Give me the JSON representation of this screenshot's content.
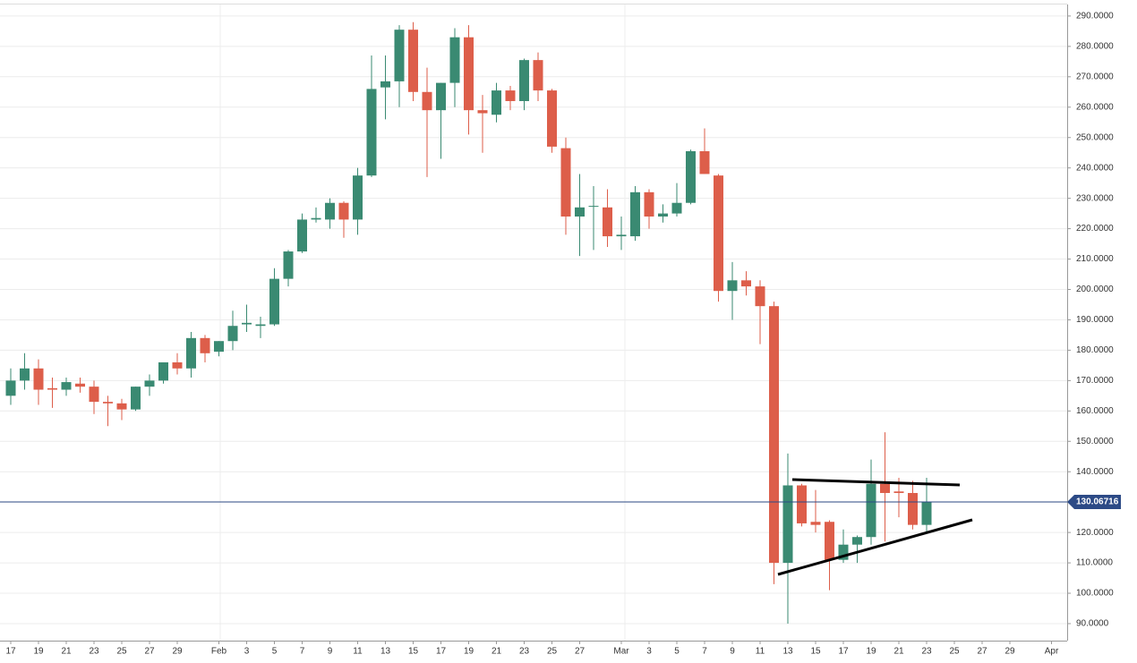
{
  "chart_data": {
    "type": "candlestick",
    "categories": [
      "17",
      null,
      "19",
      null,
      "21",
      null,
      "23",
      null,
      "25",
      null,
      "27",
      null,
      "29",
      null,
      null,
      "Feb",
      null,
      "3",
      null,
      "5",
      null,
      "7",
      null,
      "9",
      null,
      "11",
      null,
      "13",
      null,
      "15",
      null,
      "17",
      null,
      "19",
      null,
      "21",
      null,
      "23",
      null,
      "25",
      null,
      "27",
      null,
      null,
      "Mar",
      null,
      "3",
      null,
      "5",
      null,
      "7",
      null,
      "9",
      null,
      "11",
      null,
      "13",
      null,
      "15",
      null,
      "17",
      null,
      "19",
      null,
      "21",
      null,
      "23",
      null,
      "25",
      null,
      "27",
      null,
      "29",
      null,
      null,
      "Apr"
    ],
    "open": [
      165,
      170,
      174,
      167.5,
      167,
      169,
      168,
      163,
      162.5,
      160.5,
      168,
      170,
      176,
      174,
      184,
      179.5,
      183,
      188.5,
      188,
      188.5,
      203.5,
      212.5,
      223,
      223,
      228.5,
      223,
      237.5,
      266.5,
      268.5,
      285.5,
      265,
      259,
      268,
      283,
      259,
      257.5,
      265.5,
      262,
      275.5,
      265.5,
      246.5,
      224,
      227.5,
      227,
      217.5,
      217.5,
      232,
      224,
      225,
      228.5,
      245.5,
      237.5,
      199.5,
      203,
      201,
      194.5,
      110,
      135.5,
      123.5,
      123.5,
      111,
      116,
      118.5,
      136,
      133.5,
      133,
      122.5,
      null,
      null,
      null,
      null,
      null,
      null,
      null,
      null,
      null
    ],
    "high": [
      174,
      179,
      177,
      171,
      171,
      171,
      170,
      165,
      164,
      168,
      172,
      176,
      179,
      186,
      185,
      183,
      193,
      195,
      191,
      207,
      213,
      225,
      227,
      230,
      229,
      240,
      277,
      277,
      287,
      288,
      273,
      268,
      286,
      287,
      264,
      268,
      267,
      276,
      278,
      266,
      250,
      238,
      234,
      233,
      224,
      234,
      233,
      228,
      235,
      246,
      253,
      238,
      209,
      206,
      203,
      196,
      146,
      136,
      134,
      124,
      121,
      119,
      144,
      153,
      138,
      137,
      138,
      null,
      null,
      null,
      null,
      null,
      null,
      null,
      null,
      null
    ],
    "low": [
      162,
      167,
      162,
      161,
      165,
      166,
      159,
      155,
      157,
      160,
      165,
      169,
      172,
      171,
      176,
      178,
      180,
      186,
      184,
      188,
      201,
      212,
      222,
      220,
      217,
      218,
      237,
      256,
      260,
      262,
      237,
      243,
      260,
      251,
      245,
      255,
      259,
      259,
      262,
      245,
      218,
      211,
      213,
      214,
      213,
      216,
      220,
      222,
      224,
      228,
      238,
      196,
      190,
      198,
      182,
      103,
      90,
      122,
      120,
      101,
      110,
      110,
      116,
      117,
      125,
      121,
      120,
      null,
      null,
      null,
      null,
      null,
      null,
      null,
      null,
      null
    ],
    "close": [
      170,
      174,
      167,
      167,
      169.5,
      168,
      163,
      162.5,
      160.5,
      168,
      170,
      176,
      174,
      184,
      179,
      183,
      188,
      189,
      188.5,
      203.5,
      212.5,
      223,
      223.5,
      228.5,
      223,
      237.5,
      266,
      268.5,
      285.5,
      265,
      259,
      268,
      283,
      259,
      258,
      265.5,
      262,
      275.5,
      265.5,
      247,
      224,
      227,
      227.5,
      217.5,
      218,
      232,
      224,
      225,
      228.5,
      245.5,
      238,
      199.5,
      203,
      201,
      194.5,
      110,
      135.5,
      123,
      122.5,
      111,
      116,
      118.5,
      136,
      133,
      133,
      122.5,
      130,
      null,
      null,
      null,
      null,
      null,
      null,
      null,
      null,
      null
    ],
    "up_color": "#3a8a72",
    "down_color": "#dd5e4a",
    "ylim": [
      84.4,
      293.8
    ],
    "yticks": [
      {
        "value": 90,
        "label": "90.0000"
      },
      {
        "value": 100,
        "label": "100.0000"
      },
      {
        "value": 110,
        "label": "110.0000"
      },
      {
        "value": 120,
        "label": "120.0000"
      },
      {
        "value": 130,
        "label": "130.0000"
      },
      {
        "value": 140,
        "label": "140.0000"
      },
      {
        "value": 150,
        "label": "150.0000"
      },
      {
        "value": 160,
        "label": "160.0000"
      },
      {
        "value": 170,
        "label": "170.0000"
      },
      {
        "value": 180,
        "label": "180.0000"
      },
      {
        "value": 190,
        "label": "190.0000"
      },
      {
        "value": 200,
        "label": "200.0000"
      },
      {
        "value": 210,
        "label": "210.0000"
      },
      {
        "value": 220,
        "label": "220.0000"
      },
      {
        "value": 230,
        "label": "230.0000"
      },
      {
        "value": 240,
        "label": "240.0000"
      },
      {
        "value": 250,
        "label": "250.0000"
      },
      {
        "value": 260,
        "label": "260.0000"
      },
      {
        "value": 270,
        "label": "270.0000"
      },
      {
        "value": 280,
        "label": "280.0000"
      },
      {
        "value": 290,
        "label": "290.0000"
      }
    ],
    "last_price": {
      "value": 130.06716,
      "label": "130.06716"
    },
    "last_price_color": "#2c4a86",
    "grid": true
  }
}
